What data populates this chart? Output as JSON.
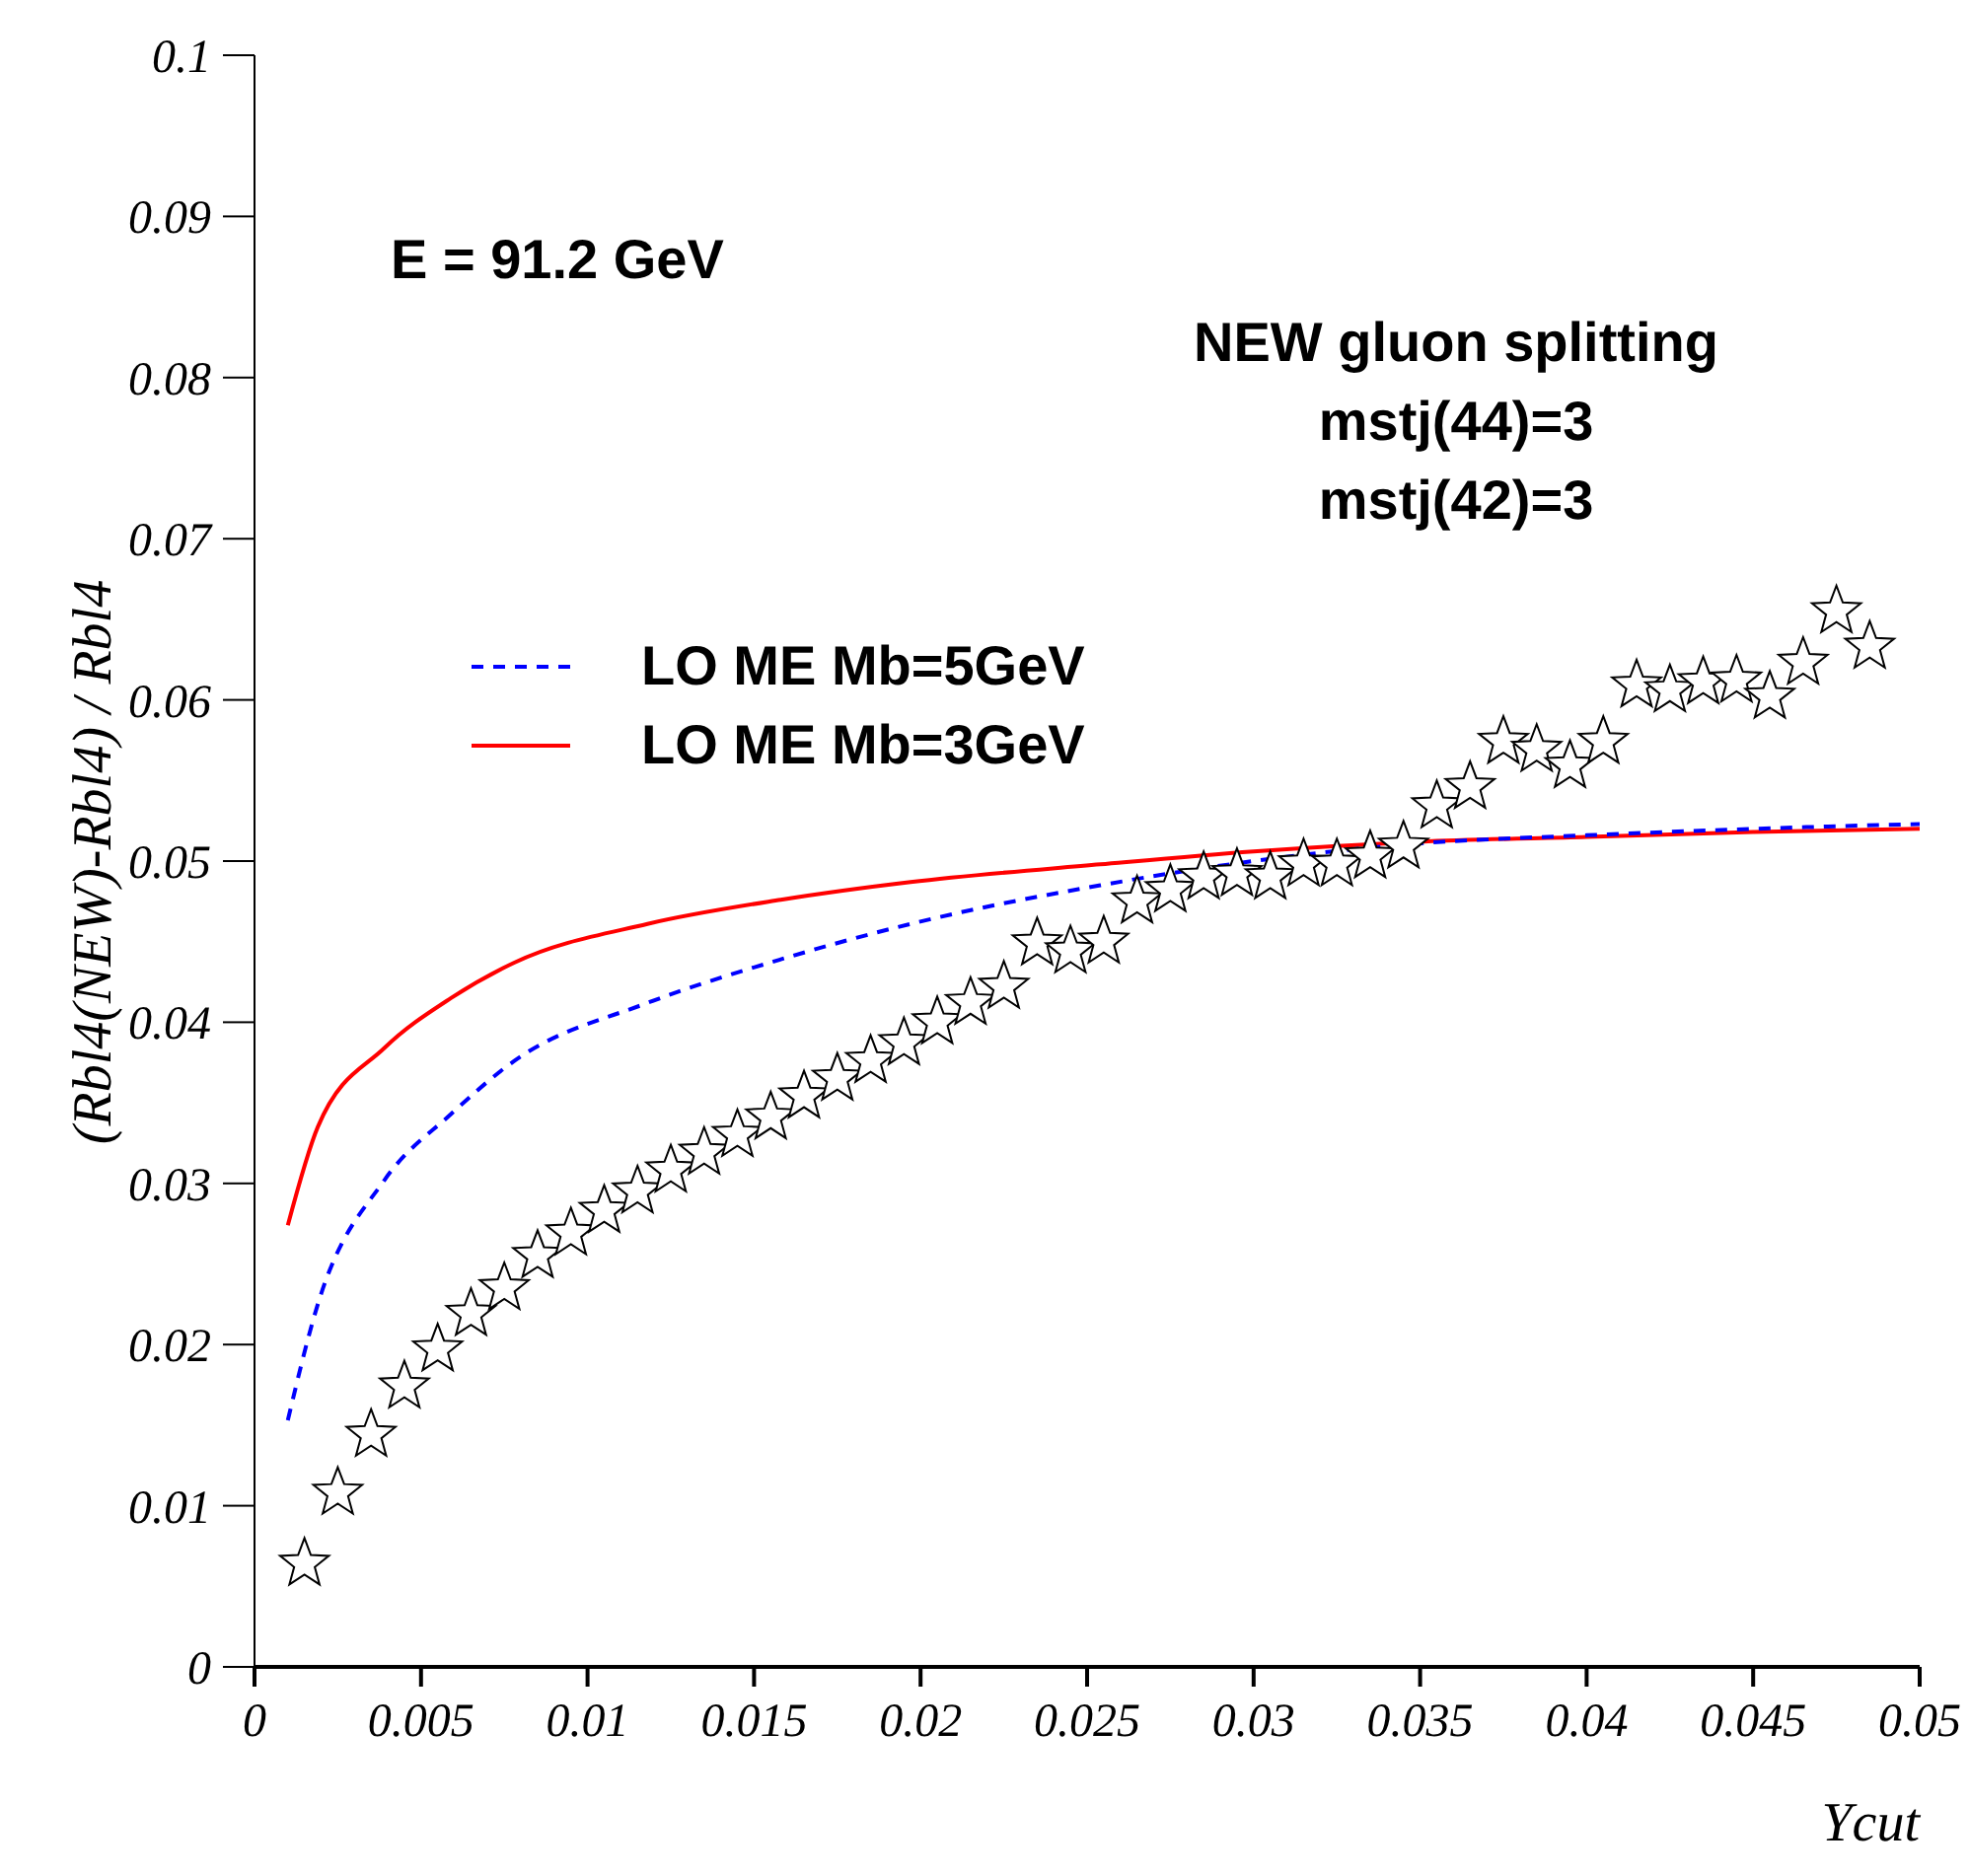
{
  "chart_data": {
    "type": "line",
    "xlabel": "Ycut",
    "ylabel": "(Rbl4(NEW)-Rbl4) / Rbl4",
    "annotations": [
      "E = 91.2 GeV",
      "NEW gluon splitting",
      "mstj(44)=3",
      "mstj(42)=3"
    ],
    "xlim": [
      0,
      0.05
    ],
    "xticks": [
      0,
      0.005,
      0.01,
      0.015,
      0.02,
      0.025,
      0.03,
      0.035,
      0.04,
      0.045,
      0.05
    ],
    "ylim": [
      0,
      0.1
    ],
    "yticks": [
      0,
      0.01,
      0.02,
      0.03,
      0.04,
      0.05,
      0.06,
      0.07,
      0.08,
      0.09,
      0.1
    ],
    "grid": false,
    "legend": "top left",
    "series": [
      {
        "type": "scatter",
        "marker": "star",
        "color": "#000000",
        "x": [
          0.0015,
          0.0025,
          0.0035,
          0.0045,
          0.0055,
          0.0065,
          0.0075,
          0.0085,
          0.0095,
          0.0105,
          0.0115,
          0.0125,
          0.0135,
          0.0145,
          0.0155,
          0.0165,
          0.0175,
          0.0185,
          0.0195,
          0.0205,
          0.0215,
          0.0225,
          0.0235,
          0.0245,
          0.0255,
          0.0265,
          0.0275,
          0.0285,
          0.0295,
          0.0305,
          0.0315,
          0.0325,
          0.0335,
          0.0345,
          0.0355,
          0.0365,
          0.0375,
          0.0385,
          0.0395,
          0.0405,
          0.0415,
          0.0425,
          0.0435,
          0.0445,
          0.0455,
          0.0465,
          0.0475,
          0.0485
        ],
        "values": [
          0.0064,
          0.0108,
          0.0144,
          0.0174,
          0.0197,
          0.0219,
          0.0235,
          0.0255,
          0.0269,
          0.0283,
          0.0295,
          0.0308,
          0.0319,
          0.033,
          0.0341,
          0.0354,
          0.0365,
          0.0376,
          0.0387,
          0.04,
          0.0412,
          0.0422,
          0.0449,
          0.0444,
          0.045,
          0.0475,
          0.0482,
          0.049,
          0.0492,
          0.049,
          0.0498,
          0.0498,
          0.0503,
          0.0509,
          0.0534,
          0.0546,
          0.0574,
          0.0569,
          0.0559,
          0.0574,
          0.0609,
          0.0606,
          0.0611,
          0.0612,
          0.0602,
          0.0623,
          0.0655,
          0.0633
        ]
      },
      {
        "name": "LO ME Mb=5GeV",
        "color": "#0000ff",
        "line_style": "dashed",
        "x": [
          0.001,
          0.0019,
          0.0039,
          0.0059,
          0.0078,
          0.0118,
          0.0158,
          0.0197,
          0.0254,
          0.03,
          0.035,
          0.04,
          0.045,
          0.05
        ],
        "values": [
          0.0153,
          0.0225,
          0.0302,
          0.0343,
          0.0376,
          0.0412,
          0.0439,
          0.0461,
          0.0485,
          0.05,
          0.0511,
          0.0516,
          0.052,
          0.0523
        ]
      },
      {
        "name": "LO ME Mb=3GeV",
        "color": "#ff0000",
        "line_style": "solid",
        "x": [
          0.001,
          0.0019,
          0.0039,
          0.0059,
          0.0078,
          0.0118,
          0.0158,
          0.0197,
          0.0254,
          0.03,
          0.035,
          0.04,
          0.045,
          0.05
        ],
        "values": [
          0.0274,
          0.0335,
          0.0384,
          0.0415,
          0.0437,
          0.0461,
          0.0476,
          0.0487,
          0.0498,
          0.0506,
          0.0512,
          0.0515,
          0.0518,
          0.052
        ]
      }
    ]
  }
}
